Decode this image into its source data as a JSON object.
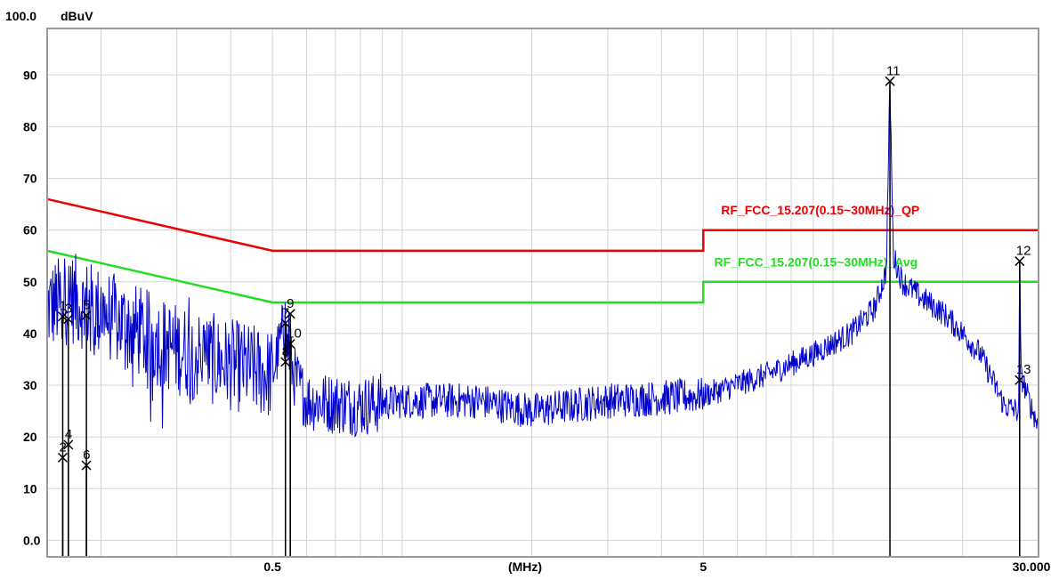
{
  "chart_data": {
    "type": "line",
    "title": "",
    "y_top_label": "100.0",
    "y_unit": "dBuV",
    "x_unit": "(MHz)",
    "x_scale": "log",
    "xlim": [
      0.15,
      30
    ],
    "ylim": [
      0,
      100
    ],
    "grid": true,
    "y_ticks": [
      {
        "value": 90,
        "label": "90"
      },
      {
        "value": 80,
        "label": "80"
      },
      {
        "value": 70,
        "label": "70"
      },
      {
        "value": 60,
        "label": "60"
      },
      {
        "value": 50,
        "label": "50"
      },
      {
        "value": 40,
        "label": "40"
      },
      {
        "value": 30,
        "label": "30"
      },
      {
        "value": 20,
        "label": "20"
      },
      {
        "value": 10,
        "label": "10"
      },
      {
        "value": 0,
        "label": "0.0"
      }
    ],
    "x_ticks": [
      {
        "value": 0.5,
        "label": "0.5"
      },
      {
        "value": 5,
        "label": "5"
      },
      {
        "value": 30,
        "label": "30.000"
      }
    ],
    "limit_lines": [
      {
        "name": "RF_FCC_15.207(0.15~30MHz)_QP",
        "color": "#ee0000",
        "points": [
          [
            0.15,
            66
          ],
          [
            0.5,
            56
          ],
          [
            5,
            56
          ],
          [
            5,
            60
          ],
          [
            30,
            60
          ]
        ],
        "label_pos": [
          5.5,
          63
        ]
      },
      {
        "name": "RF_FCC_15.207(0.15~30MHz)_Avg",
        "color": "#22dd22",
        "points": [
          [
            0.15,
            56
          ],
          [
            0.5,
            46
          ],
          [
            5,
            46
          ],
          [
            5,
            50
          ],
          [
            30,
            50
          ]
        ],
        "label_pos": [
          5.3,
          53
        ]
      }
    ],
    "series": [
      {
        "color": "#0000cc",
        "anchors": [
          [
            0.15,
            45
          ],
          [
            0.17,
            47
          ],
          [
            0.2,
            44
          ],
          [
            0.25,
            40
          ],
          [
            0.3,
            37
          ],
          [
            0.4,
            34
          ],
          [
            0.5,
            32
          ],
          [
            0.53,
            41
          ],
          [
            0.56,
            32
          ],
          [
            0.6,
            27
          ],
          [
            0.8,
            26
          ],
          [
            1,
            27
          ],
          [
            1.5,
            27
          ],
          [
            2,
            25
          ],
          [
            3,
            27
          ],
          [
            5,
            28
          ],
          [
            7,
            32
          ],
          [
            9,
            36
          ],
          [
            11,
            40
          ],
          [
            12.5,
            45
          ],
          [
            13.3,
            52
          ],
          [
            13.56,
            89
          ],
          [
            13.8,
            55
          ],
          [
            14.5,
            50
          ],
          [
            16,
            47
          ],
          [
            18,
            44
          ],
          [
            20,
            40
          ],
          [
            22,
            36
          ],
          [
            25,
            26
          ],
          [
            27,
            25
          ],
          [
            27.12,
            54
          ],
          [
            27.3,
            32
          ],
          [
            28.5,
            27
          ],
          [
            30,
            22
          ]
        ],
        "peaks": [
          [
            0.165,
            52
          ],
          [
            0.17,
            53
          ],
          [
            0.182,
            50
          ],
          [
            0.2,
            49
          ],
          [
            0.32,
            47
          ],
          [
            0.535,
            46
          ],
          [
            0.545,
            44
          ],
          [
            13.56,
            89
          ],
          [
            27.12,
            54
          ]
        ]
      }
    ],
    "markers": [
      {
        "label": "1",
        "x": 0.163,
        "y": 43.3
      },
      {
        "label": "2",
        "x": 0.163,
        "y": 16.0
      },
      {
        "label": "3",
        "x": 0.168,
        "y": 42.8
      },
      {
        "label": "4",
        "x": 0.168,
        "y": 18.5
      },
      {
        "label": "5",
        "x": 0.185,
        "y": 43.5
      },
      {
        "label": "6",
        "x": 0.185,
        "y": 14.5
      },
      {
        "label": "7",
        "x": 0.536,
        "y": 42.0
      },
      {
        "label": "8",
        "x": 0.536,
        "y": 34.5
      },
      {
        "label": "9",
        "x": 0.55,
        "y": 43.8
      },
      {
        "label": "10",
        "x": 0.55,
        "y": 38.0
      },
      {
        "label": "11",
        "x": 13.56,
        "y": 88.8
      },
      {
        "label": "12",
        "x": 27.12,
        "y": 54.0
      },
      {
        "label": "13",
        "x": 27.12,
        "y": 31.0
      }
    ]
  }
}
